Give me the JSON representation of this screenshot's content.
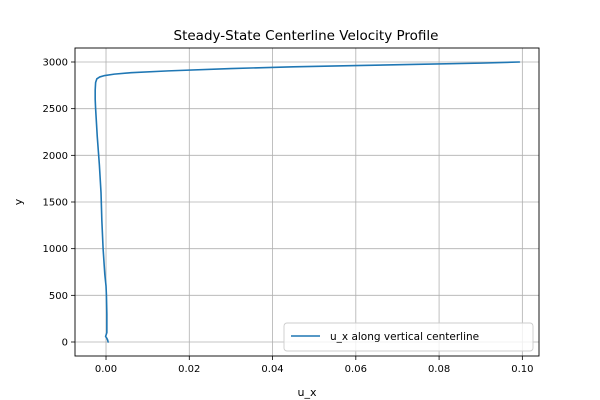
{
  "chart_data": {
    "type": "line",
    "title": "Steady-State Centerline Velocity Profile",
    "xlabel": "u_x",
    "ylabel": "y",
    "xlim": [
      -0.00745,
      0.104
    ],
    "ylim": [
      -150,
      3150
    ],
    "xticks": [
      0.0,
      0.02,
      0.04,
      0.06,
      0.08,
      0.1
    ],
    "xtick_labels": [
      "0.00",
      "0.02",
      "0.04",
      "0.06",
      "0.08",
      "0.10"
    ],
    "yticks": [
      0,
      500,
      1000,
      1500,
      2000,
      2500,
      3000
    ],
    "ytick_labels": [
      "0",
      "500",
      "1000",
      "1500",
      "2000",
      "2500",
      "3000"
    ],
    "grid": true,
    "legend_position": "lower-right",
    "series": [
      {
        "name": "u_x along vertical centerline",
        "color": "#1f77b4",
        "x": [
          0.0005,
          0.0004,
          0.0002,
          -0.0001,
          0.0002,
          0.0002,
          0.0001,
          0.0,
          -0.0003,
          -0.0007,
          -0.001,
          -0.0012,
          -0.0016,
          -0.0021,
          -0.0025,
          -0.0026,
          -0.0026,
          -0.0025,
          -0.0022,
          -0.0015,
          -0.0003,
          0.002,
          0.006,
          0.015,
          0.03,
          0.045,
          0.06,
          0.075,
          0.09,
          0.0993
        ],
        "y": [
          0,
          20,
          40,
          60,
          100,
          300,
          500,
          600,
          730,
          1000,
          1300,
          1600,
          1900,
          2200,
          2500,
          2600,
          2700,
          2780,
          2820,
          2840,
          2855,
          2870,
          2885,
          2905,
          2930,
          2948,
          2962,
          2975,
          2988,
          3000
        ]
      }
    ]
  }
}
